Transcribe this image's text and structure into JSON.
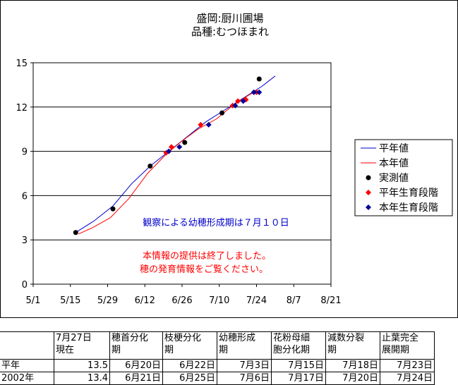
{
  "chart_data": {
    "type": "line",
    "title": "盛岡:厨川圃場",
    "subtitle": "品種:むつほまれ",
    "x_ticks": [
      "5/1",
      "5/15",
      "5/29",
      "6/12",
      "6/26",
      "7/10",
      "7/24",
      "8/7",
      "8/21"
    ],
    "xlim": [
      0,
      112
    ],
    "ylim": [
      0,
      15
    ],
    "y_ticks": [
      0,
      3,
      6,
      9,
      12,
      15
    ],
    "grid": "horizontal",
    "legend_position": "right",
    "series": [
      {
        "name": "平年値",
        "kind": "line",
        "color": "#0000cc",
        "points": [
          [
            16,
            3.5
          ],
          [
            23,
            4.3
          ],
          [
            30,
            5.3
          ],
          [
            37,
            6.8
          ],
          [
            44,
            8.0
          ],
          [
            51,
            9.0
          ],
          [
            58,
            10.0
          ],
          [
            65,
            11.0
          ],
          [
            72,
            11.8
          ],
          [
            79,
            12.6
          ],
          [
            86,
            13.4
          ],
          [
            91,
            14.1
          ]
        ]
      },
      {
        "name": "本年値",
        "kind": "line",
        "color": "#ff0000",
        "points": [
          [
            17,
            3.4
          ],
          [
            22,
            3.8
          ],
          [
            29,
            4.5
          ],
          [
            36,
            5.8
          ],
          [
            43,
            7.5
          ],
          [
            50,
            8.8
          ],
          [
            56,
            9.7
          ],
          [
            62,
            10.5
          ],
          [
            69,
            11.2
          ],
          [
            75,
            12.1
          ],
          [
            81,
            12.8
          ],
          [
            83,
            13.0
          ]
        ]
      },
      {
        "name": "実測値",
        "kind": "scatter",
        "color": "#000000",
        "points": [
          [
            16,
            3.5
          ],
          [
            30,
            5.1
          ],
          [
            44,
            8.0
          ],
          [
            57,
            9.6
          ],
          [
            71,
            11.6
          ],
          [
            85,
            13.9
          ]
        ]
      },
      {
        "name": "平年生育段階",
        "kind": "diamond",
        "color": "#ff0000",
        "points": [
          [
            50,
            8.9
          ],
          [
            52,
            9.3
          ],
          [
            63,
            10.8
          ],
          [
            75,
            12.1
          ],
          [
            77,
            12.4
          ],
          [
            80,
            12.5
          ],
          [
            84,
            13.0
          ]
        ]
      },
      {
        "name": "本年生育段階",
        "kind": "diamond",
        "color": "#000099",
        "points": [
          [
            51,
            9.0
          ],
          [
            55,
            9.3
          ],
          [
            66,
            10.8
          ],
          [
            76,
            12.1
          ],
          [
            79,
            12.4
          ],
          [
            83,
            13.0
          ],
          [
            85,
            13.0
          ]
        ]
      }
    ],
    "annotations": [
      {
        "text": "観察による幼穂形成期は７月１０日",
        "color": "#0000cc"
      },
      {
        "text": "本情報の提供は終了しました。",
        "color": "#ff0000"
      },
      {
        "text": "穂の発育情報をご覧ください。",
        "color": "#ff0000"
      }
    ]
  },
  "table": {
    "headers": [
      "",
      "7月27日\n現在",
      "穂首分化\n期",
      "枝梗分化\n期",
      "幼穂形成\n期",
      "花粉母細\n胞分化期",
      "減数分裂\n期",
      "止葉完全\n展開期"
    ],
    "rows": [
      [
        "平年",
        "13.5",
        "6月20日",
        "6月22日",
        "7月3日",
        "7月15日",
        "7月18日",
        "7月23日"
      ],
      [
        "2002年",
        "13.4",
        "6月21日",
        "6月25日",
        "7月6日",
        "7月17日",
        "7月20日",
        "7月24日"
      ]
    ]
  }
}
